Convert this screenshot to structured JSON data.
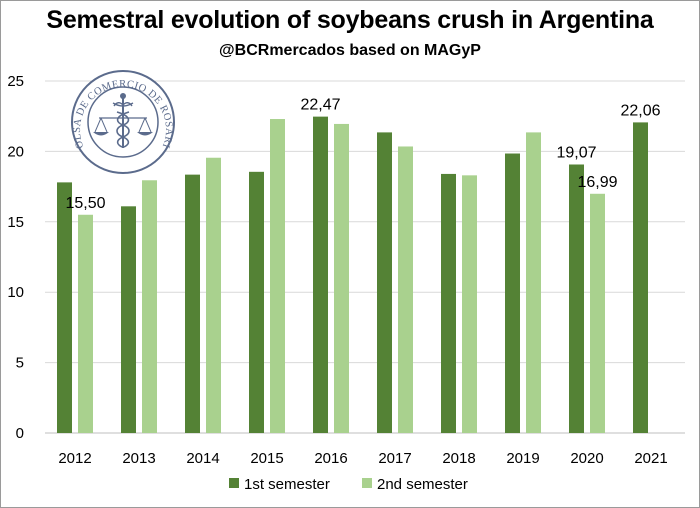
{
  "chart_data": {
    "type": "bar",
    "title": "Semestral evolution of soybeans crush in Argentina",
    "subtitle": "@BCRmercados based on MAGyP",
    "categories": [
      "2012",
      "2013",
      "2014",
      "2015",
      "2016",
      "2017",
      "2018",
      "2019",
      "2020",
      "2021"
    ],
    "series": [
      {
        "name": "1st semester",
        "color": "#548235",
        "values": [
          17.8,
          16.1,
          18.35,
          18.55,
          22.47,
          21.35,
          18.4,
          19.85,
          19.07,
          22.06
        ],
        "data_labels": [
          null,
          null,
          null,
          null,
          "22,47",
          null,
          null,
          null,
          "19,07",
          "22,06"
        ]
      },
      {
        "name": "2nd semester",
        "color": "#a9d18e",
        "values": [
          15.5,
          17.95,
          19.55,
          22.3,
          21.95,
          20.35,
          18.3,
          21.35,
          16.99,
          null
        ],
        "data_labels": [
          "15,50",
          null,
          null,
          null,
          null,
          null,
          null,
          null,
          "16,99",
          null
        ]
      }
    ],
    "ylim": [
      0,
      25
    ],
    "yticks": [
      "0",
      "5",
      "10",
      "15",
      "20",
      "25"
    ],
    "xlabel": "",
    "ylabel": "",
    "grid": true,
    "legend": "bottom-center"
  },
  "logo": {
    "text": "BOLSA DE COMERCIO DE ROSARIO"
  }
}
